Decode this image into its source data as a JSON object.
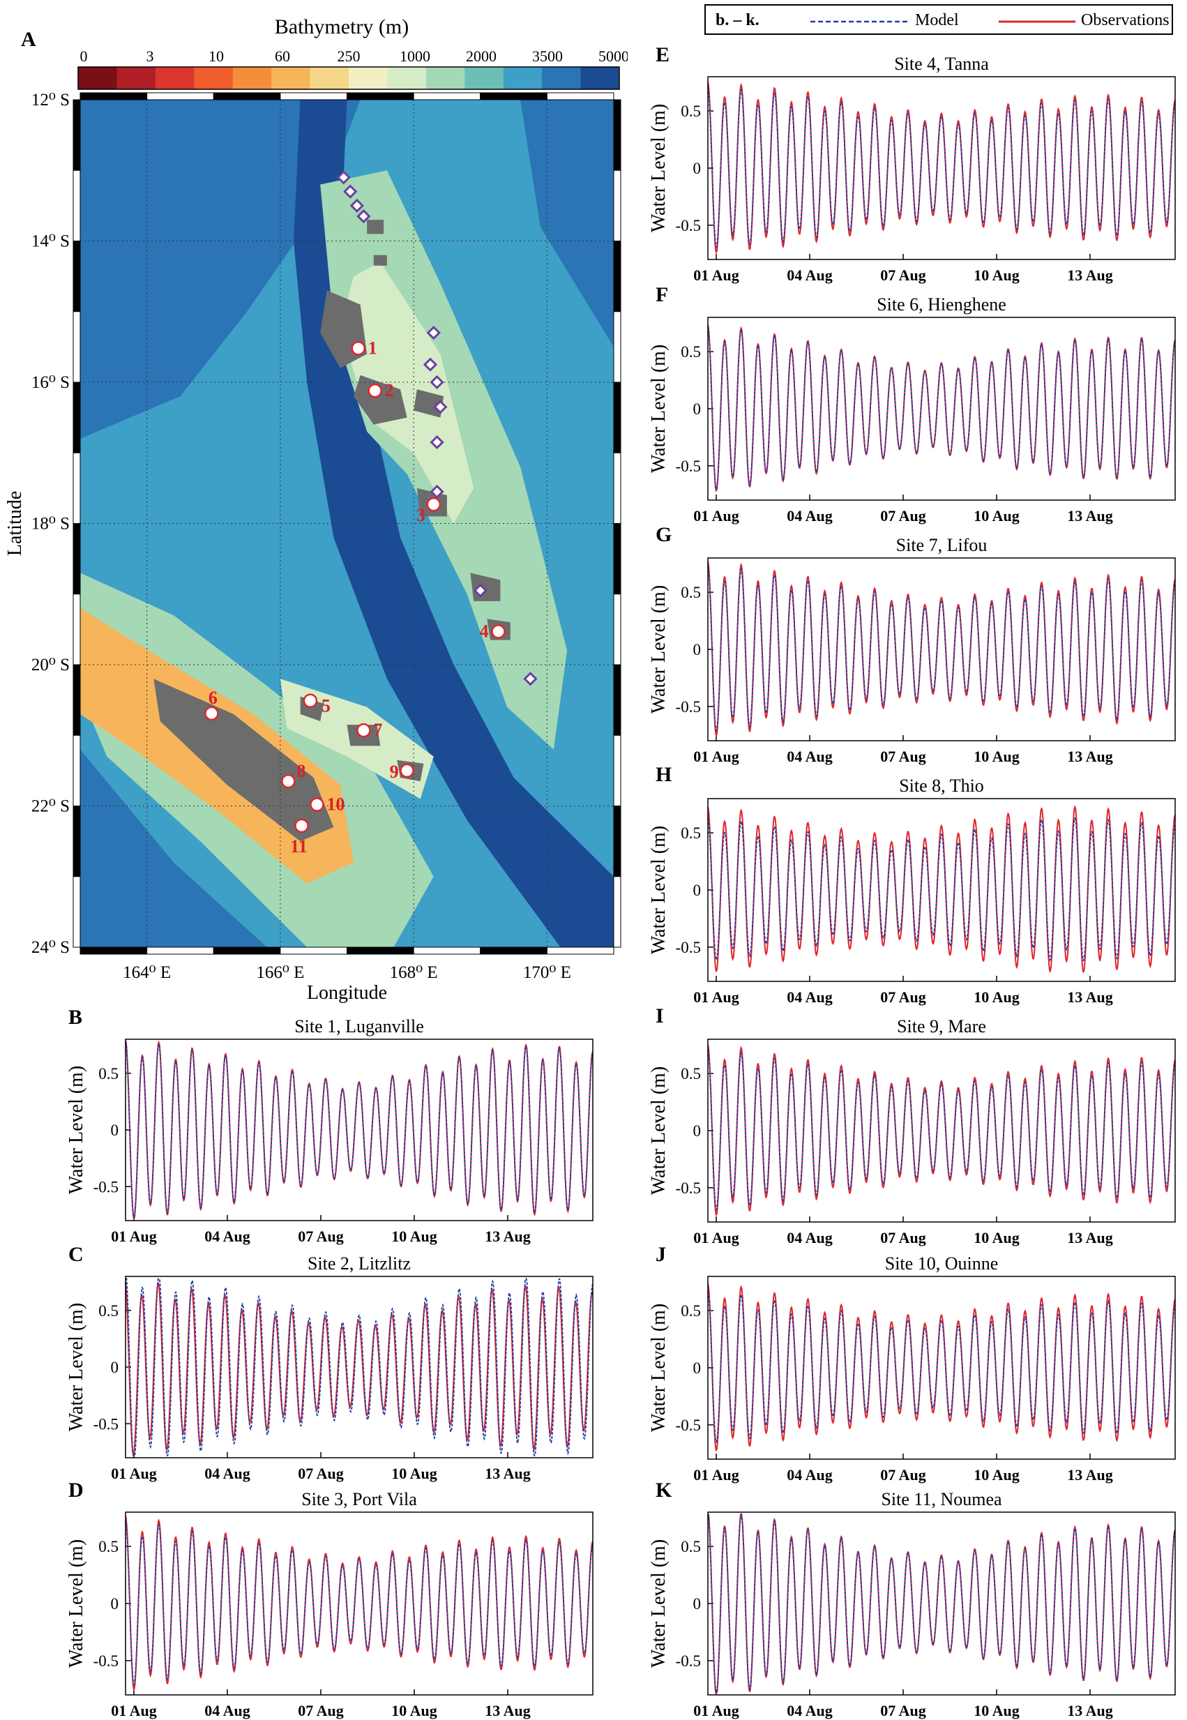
{
  "legend": {
    "prefix": "b. – k.",
    "model": "Model",
    "observations": "Observations",
    "model_color": "#1c3fa3",
    "obs_color": "#e0262c"
  },
  "map": {
    "panel_letter": "A",
    "colorbar_title": "Bathymetry (m)",
    "colorbar_ticks": [
      "0",
      "3",
      "10",
      "60",
      "250",
      "1000",
      "2000",
      "3500",
      "5000"
    ],
    "colorbar_colors": [
      "#7a0f17",
      "#b01f25",
      "#dc3530",
      "#ef5e2c",
      "#f48e3a",
      "#f6b55b",
      "#f6d78a",
      "#f3efc4",
      "#d6ecc6",
      "#a5d8b5",
      "#6cbfb4",
      "#3e9fc7",
      "#2b74b5",
      "#1b4b93"
    ],
    "lat_labels": [
      "12⁰ S",
      "14⁰ S",
      "16⁰ S",
      "18⁰ S",
      "20⁰ S",
      "22⁰ S",
      "24⁰ S"
    ],
    "lon_labels": [
      "164⁰ E",
      "166⁰ E",
      "168⁰ E",
      "170⁰ E"
    ],
    "xlabel": "Longitude",
    "ylabel": "Latitude",
    "sites": [
      {
        "label": "1",
        "lon": 167.17,
        "lat": -15.52
      },
      {
        "label": "2",
        "lon": 167.42,
        "lat": -16.12
      },
      {
        "label": "3",
        "lon": 168.3,
        "lat": -17.73
      },
      {
        "label": "4",
        "lon": 169.27,
        "lat": -19.53
      },
      {
        "label": "5",
        "lon": 166.45,
        "lat": -20.51
      },
      {
        "label": "6",
        "lon": 164.97,
        "lat": -20.69
      },
      {
        "label": "7",
        "lon": 167.25,
        "lat": -20.93
      },
      {
        "label": "8",
        "lon": 166.12,
        "lat": -21.65
      },
      {
        "label": "9",
        "lon": 167.9,
        "lat": -21.5
      },
      {
        "label": "10",
        "lon": 166.55,
        "lat": -21.98
      },
      {
        "label": "11",
        "lon": 166.32,
        "lat": -22.28
      }
    ]
  },
  "chart_data": [
    {
      "type": "line",
      "panel": "B",
      "title": "Site 1,  Luganville",
      "ylabel": "Water Level (m)",
      "xticks": [
        "01 Aug",
        "04 Aug",
        "07 Aug",
        "10 Aug",
        "13 Aug"
      ],
      "yticks": [
        "0.5",
        "0",
        "-0.5"
      ],
      "ylim": [
        -0.8,
        0.8
      ],
      "amp": [
        0.72,
        0.7,
        0.66,
        0.62,
        0.58,
        0.52,
        0.46,
        0.4,
        0.38,
        0.42,
        0.5,
        0.56,
        0.62,
        0.66,
        0.68,
        0.66,
        0.62
      ],
      "model_scale": 1.0,
      "obs_scale": 1.02,
      "shift": 0.0
    },
    {
      "type": "line",
      "panel": "C",
      "title": "Site 2,  Litzlitz",
      "ylabel": "Water Level (m)",
      "xticks": [
        "01 Aug",
        "04 Aug",
        "07 Aug",
        "10 Aug",
        "13 Aug"
      ],
      "yticks": [
        "0.5",
        "0",
        "-0.5"
      ],
      "ylim": [
        -0.8,
        0.8
      ],
      "amp": [
        0.75,
        0.72,
        0.68,
        0.64,
        0.58,
        0.52,
        0.46,
        0.42,
        0.4,
        0.44,
        0.52,
        0.58,
        0.64,
        0.68,
        0.7,
        0.68,
        0.64
      ],
      "model_scale": 1.05,
      "obs_scale": 0.95,
      "shift": 0.22
    },
    {
      "type": "line",
      "panel": "D",
      "title": "Site 3,  Port Vila",
      "ylabel": "Water Level (m)",
      "xticks": [
        "01 Aug",
        "04 Aug",
        "07 Aug",
        "10 Aug",
        "13 Aug"
      ],
      "yticks": [
        "0.5",
        "0",
        "-0.5"
      ],
      "ylim": [
        -0.8,
        0.8
      ],
      "amp": [
        0.68,
        0.65,
        0.6,
        0.56,
        0.52,
        0.48,
        0.42,
        0.38,
        0.36,
        0.4,
        0.44,
        0.48,
        0.5,
        0.52,
        0.52,
        0.5,
        0.48
      ],
      "model_scale": 0.98,
      "obs_scale": 1.04,
      "shift": 0.0
    },
    {
      "type": "line",
      "panel": "E",
      "title": "Site 4,  Tanna",
      "ylabel": "Water Level (m)",
      "xticks": [
        "01 Aug",
        "04 Aug",
        "07 Aug",
        "10 Aug",
        "13 Aug"
      ],
      "yticks": [
        "0.5",
        "0",
        "-0.5"
      ],
      "ylim": [
        -0.8,
        0.8
      ],
      "amp": [
        0.66,
        0.64,
        0.62,
        0.6,
        0.56,
        0.52,
        0.48,
        0.44,
        0.42,
        0.44,
        0.48,
        0.52,
        0.54,
        0.56,
        0.56,
        0.54,
        0.52
      ],
      "model_scale": 0.98,
      "obs_scale": 1.05,
      "shift": 0.0
    },
    {
      "type": "line",
      "panel": "F",
      "title": "Site 6,  Hienghene",
      "ylabel": "Water Level (m)",
      "xticks": [
        "01 Aug",
        "04 Aug",
        "07 Aug",
        "10 Aug",
        "13 Aug"
      ],
      "yticks": [
        "0.5",
        "0",
        "-0.5"
      ],
      "ylim": [
        -0.8,
        0.8
      ],
      "amp": [
        0.66,
        0.64,
        0.6,
        0.56,
        0.5,
        0.44,
        0.4,
        0.36,
        0.36,
        0.4,
        0.46,
        0.5,
        0.54,
        0.56,
        0.56,
        0.56,
        0.54
      ],
      "model_scale": 1.0,
      "obs_scale": 1.02,
      "shift": 0.0
    },
    {
      "type": "line",
      "panel": "G",
      "title": "Site 7,  Lifou",
      "ylabel": "Water Level (m)",
      "xticks": [
        "01 Aug",
        "04 Aug",
        "07 Aug",
        "10 Aug",
        "13 Aug"
      ],
      "yticks": [
        "0.5",
        "0",
        "-0.5"
      ],
      "ylim": [
        -0.8,
        0.8
      ],
      "amp": [
        0.68,
        0.66,
        0.62,
        0.58,
        0.54,
        0.5,
        0.46,
        0.42,
        0.4,
        0.42,
        0.46,
        0.5,
        0.54,
        0.56,
        0.58,
        0.56,
        0.54
      ],
      "model_scale": 0.98,
      "obs_scale": 1.04,
      "shift": 0.0
    },
    {
      "type": "line",
      "panel": "H",
      "title": "Site 8,  Thio",
      "ylabel": "Water Level (m)",
      "xticks": [
        "01 Aug",
        "04 Aug",
        "07 Aug",
        "10 Aug",
        "13 Aug"
      ],
      "yticks": [
        "0.5",
        "0",
        "-0.5"
      ],
      "ylim": [
        -0.8,
        0.8
      ],
      "amp": [
        0.62,
        0.6,
        0.56,
        0.52,
        0.48,
        0.44,
        0.42,
        0.44,
        0.48,
        0.52,
        0.56,
        0.6,
        0.62,
        0.62,
        0.6,
        0.58,
        0.56
      ],
      "model_scale": 0.92,
      "obs_scale": 1.08,
      "shift": 0.0
    },
    {
      "type": "line",
      "panel": "I",
      "title": "Site 9, Mare",
      "ylabel": "Water Level (m)",
      "xticks": [
        "01 Aug",
        "04 Aug",
        "07 Aug",
        "10 Aug",
        "13 Aug"
      ],
      "yticks": [
        "0.5",
        "0",
        "-0.5"
      ],
      "ylim": [
        -0.8,
        0.8
      ],
      "amp": [
        0.66,
        0.64,
        0.6,
        0.56,
        0.52,
        0.48,
        0.44,
        0.4,
        0.38,
        0.4,
        0.44,
        0.48,
        0.52,
        0.54,
        0.56,
        0.56,
        0.54
      ],
      "model_scale": 0.98,
      "obs_scale": 1.05,
      "shift": 0.0
    },
    {
      "type": "line",
      "panel": "J",
      "title": "Site 10,  Ouinne",
      "ylabel": "Water Level (m)",
      "xticks": [
        "01 Aug",
        "04 Aug",
        "07 Aug",
        "10 Aug",
        "13 Aug"
      ],
      "yticks": [
        "0.5",
        "0",
        "-0.5"
      ],
      "ylim": [
        -0.8,
        0.8
      ],
      "amp": [
        0.64,
        0.62,
        0.58,
        0.54,
        0.5,
        0.46,
        0.42,
        0.4,
        0.4,
        0.44,
        0.48,
        0.52,
        0.54,
        0.56,
        0.56,
        0.54,
        0.52
      ],
      "model_scale": 0.95,
      "obs_scale": 1.06,
      "shift": 0.0
    },
    {
      "type": "line",
      "panel": "K",
      "title": "Site 11,  Noumea",
      "ylabel": "Water Level (m)",
      "xticks": [
        "01 Aug",
        "04 Aug",
        "07 Aug",
        "10 Aug",
        "13 Aug"
      ],
      "yticks": [
        "0.5",
        "0",
        "-0.5"
      ],
      "ylim": [
        -0.8,
        0.8
      ],
      "amp": [
        0.74,
        0.72,
        0.68,
        0.62,
        0.56,
        0.5,
        0.44,
        0.4,
        0.38,
        0.42,
        0.48,
        0.54,
        0.58,
        0.62,
        0.62,
        0.6,
        0.58
      ],
      "model_scale": 1.0,
      "obs_scale": 1.02,
      "shift": 0.0
    }
  ]
}
